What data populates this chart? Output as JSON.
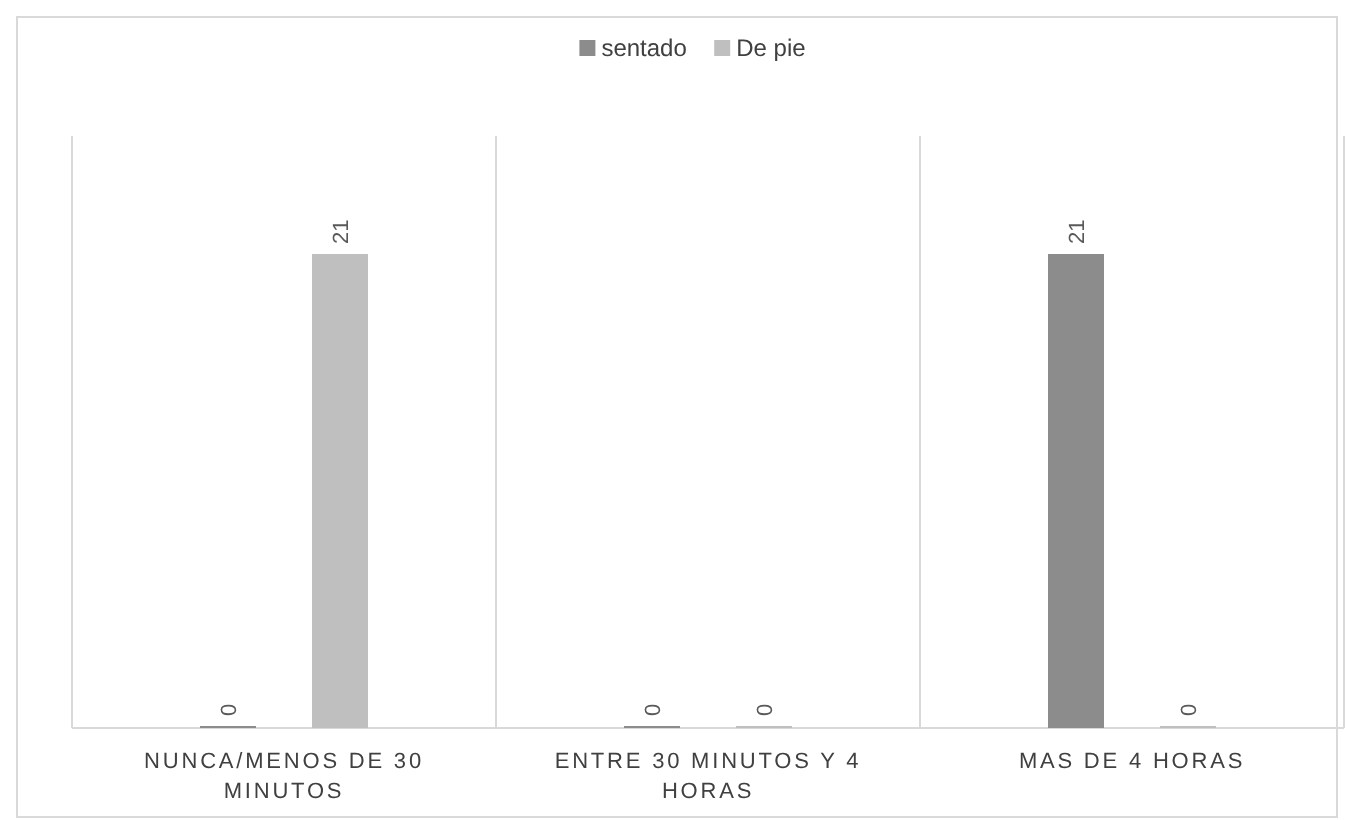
{
  "chart_data": {
    "type": "bar",
    "categories": [
      "NUNCA/MENOS DE 30 MINUTOS",
      "ENTRE 30 MINUTOS Y 4 HORAS",
      "MAS DE 4 HORAS"
    ],
    "series": [
      {
        "name": "sentado",
        "color": "#8c8c8c",
        "values": [
          0,
          0,
          21
        ]
      },
      {
        "name": "De pie",
        "color": "#bfbfbf",
        "values": [
          21,
          0,
          0
        ]
      }
    ],
    "data_labels": true,
    "legend": "top",
    "grid": "x"
  }
}
